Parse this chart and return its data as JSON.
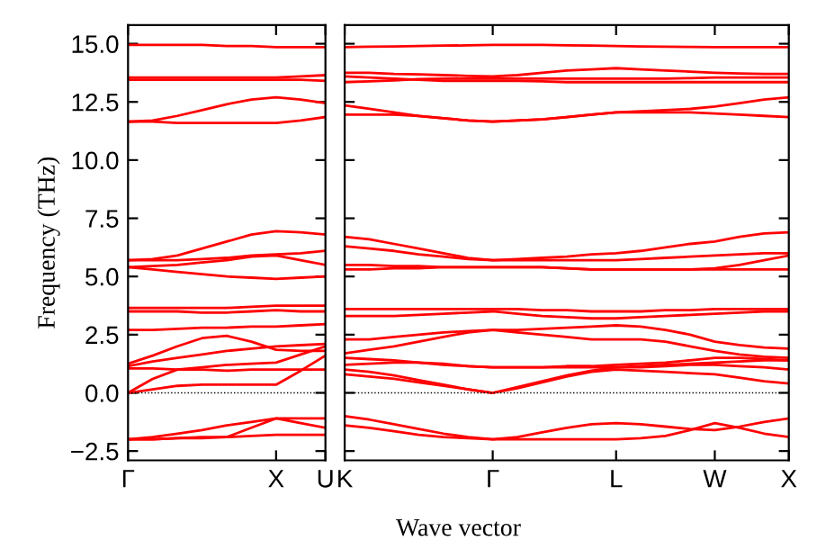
{
  "chart_data": [
    {
      "type": "line",
      "ylabel": "Frequency (THz)",
      "categories": [
        "Γ",
        null,
        null,
        null,
        null,
        null,
        "X",
        null,
        "U"
      ],
      "ylim": [
        -2.9,
        15.8
      ],
      "yticks": [
        {
          "value": -2.5,
          "label": "−2.5"
        },
        {
          "value": 0,
          "label": "0.0"
        },
        2.5,
        {
          "value": 5,
          "label": "5.0"
        },
        7.5,
        {
          "value": 10,
          "label": "10.0"
        },
        12.5,
        {
          "value": 15,
          "label": "15.0"
        }
      ],
      "ref_lines": [
        {
          "axis": "y",
          "value": 0,
          "color": "#000000",
          "line_style": "dotted"
        }
      ],
      "series": [
        {
          "color": "#ff0000",
          "values": [
            14.95,
            14.95,
            14.95,
            14.95,
            14.9,
            14.9,
            14.85,
            14.85,
            14.85
          ]
        },
        {
          "color": "#ff0000",
          "values": [
            13.55,
            13.55,
            13.55,
            13.55,
            13.55,
            13.55,
            13.55,
            13.6,
            13.65
          ]
        },
        {
          "color": "#ff0000",
          "values": [
            13.45,
            13.45,
            13.45,
            13.45,
            13.45,
            13.45,
            13.45,
            13.45,
            13.4
          ]
        },
        {
          "color": "#ff0000",
          "values": [
            11.65,
            11.7,
            11.9,
            12.15,
            12.4,
            12.6,
            12.7,
            12.6,
            12.45
          ]
        },
        {
          "color": "#ff0000",
          "values": [
            11.65,
            11.65,
            11.6,
            11.6,
            11.6,
            11.6,
            11.6,
            11.7,
            11.85
          ]
        },
        {
          "color": "#ff0000",
          "values": [
            5.7,
            5.75,
            5.9,
            6.2,
            6.5,
            6.8,
            6.95,
            6.9,
            6.8
          ]
        },
        {
          "color": "#ff0000",
          "values": [
            5.7,
            5.7,
            5.7,
            5.75,
            5.8,
            5.9,
            5.95,
            6.0,
            6.1
          ]
        },
        {
          "color": "#ff0000",
          "values": [
            5.4,
            5.45,
            5.5,
            5.6,
            5.7,
            5.85,
            5.9,
            5.7,
            5.5
          ]
        },
        {
          "color": "#ff0000",
          "values": [
            5.4,
            5.3,
            5.2,
            5.1,
            5.0,
            4.95,
            4.9,
            4.95,
            5.0
          ]
        },
        {
          "color": "#ff0000",
          "values": [
            3.65,
            3.65,
            3.65,
            3.65,
            3.65,
            3.7,
            3.75,
            3.75,
            3.75
          ]
        },
        {
          "color": "#ff0000",
          "values": [
            3.5,
            3.5,
            3.5,
            3.45,
            3.45,
            3.5,
            3.55,
            3.5,
            3.5
          ]
        },
        {
          "color": "#ff0000",
          "values": [
            2.7,
            2.7,
            2.75,
            2.8,
            2.8,
            2.85,
            2.85,
            2.9,
            2.95
          ]
        },
        {
          "color": "#ff0000",
          "values": [
            1.25,
            1.6,
            2.0,
            2.35,
            2.45,
            2.2,
            1.85,
            1.8,
            1.8
          ]
        },
        {
          "color": "#ff0000",
          "values": [
            1.15,
            1.35,
            1.5,
            1.65,
            1.8,
            1.9,
            2.0,
            2.05,
            2.1
          ]
        },
        {
          "color": "#ff0000",
          "values": [
            1.05,
            1.05,
            1.0,
            1.0,
            0.95,
            1.0,
            1.0,
            1.0,
            1.0
          ]
        },
        {
          "color": "#ff0000",
          "values": [
            0,
            0.15,
            0.3,
            0.35,
            0.35,
            0.35,
            0.35,
            0.95,
            1.6
          ]
        },
        {
          "color": "#ff0000",
          "values": [
            0,
            0.6,
            1.0,
            1.1,
            1.2,
            1.25,
            1.3,
            1.65,
            2.0
          ]
        },
        {
          "color": "#ff0000",
          "values": [
            -2.0,
            -1.9,
            -1.75,
            -1.6,
            -1.4,
            -1.25,
            -1.1,
            -1.1,
            -1.1
          ]
        },
        {
          "color": "#ff0000",
          "values": [
            -2.0,
            -2.0,
            -1.95,
            -1.95,
            -1.9,
            -1.5,
            -1.1,
            -1.3,
            -1.5
          ]
        },
        {
          "color": "#ff0000",
          "values": [
            -2.0,
            -2.0,
            -1.95,
            -1.9,
            -1.9,
            -1.85,
            -1.8,
            -1.8,
            -1.8
          ]
        }
      ]
    },
    {
      "type": "line",
      "xlabel": "Wave vector",
      "categories": [
        "K",
        null,
        null,
        null,
        null,
        null,
        "Γ",
        null,
        null,
        null,
        null,
        "L",
        null,
        null,
        null,
        "W",
        null,
        null,
        "X"
      ],
      "ylim": [
        -2.9,
        15.8
      ],
      "yticks": [
        {
          "value": -2.5,
          "label": null
        },
        {
          "value": 0,
          "label": null
        },
        {
          "value": 2.5,
          "label": null
        },
        {
          "value": 5,
          "label": null
        },
        {
          "value": 7.5,
          "label": null
        },
        {
          "value": 10,
          "label": null
        },
        {
          "value": 12.5,
          "label": null
        },
        {
          "value": 15,
          "label": null
        }
      ],
      "tick_labels": "x",
      "ref_lines": [
        {
          "axis": "y",
          "value": 0,
          "color": "#000000",
          "line_style": "dotted"
        }
      ],
      "series": [
        {
          "color": "#ff0000",
          "values": [
            14.85,
            14.87,
            14.88,
            14.9,
            14.92,
            14.93,
            14.95,
            14.95,
            14.95,
            14.93,
            14.92,
            14.9,
            14.88,
            14.87,
            14.86,
            14.85,
            14.85,
            14.85,
            14.85
          ]
        },
        {
          "color": "#ff0000",
          "values": [
            13.75,
            13.75,
            13.7,
            13.68,
            13.65,
            13.62,
            13.6,
            13.65,
            13.75,
            13.85,
            13.9,
            13.95,
            13.9,
            13.85,
            13.8,
            13.75,
            13.72,
            13.7,
            13.7
          ]
        },
        {
          "color": "#ff0000",
          "values": [
            13.6,
            13.55,
            13.5,
            13.45,
            13.4,
            13.4,
            13.4,
            13.4,
            13.38,
            13.35,
            13.35,
            13.35,
            13.35,
            13.35,
            13.35,
            13.35,
            13.35,
            13.35,
            13.35
          ]
        },
        {
          "color": "#ff0000",
          "values": [
            13.35,
            13.38,
            13.42,
            13.48,
            13.5,
            13.5,
            13.5,
            13.5,
            13.5,
            13.5,
            13.5,
            13.5,
            13.5,
            13.5,
            13.52,
            13.55,
            13.55,
            13.55,
            13.55
          ]
        },
        {
          "color": "#ff0000",
          "values": [
            12.35,
            12.2,
            12.05,
            11.9,
            11.8,
            11.7,
            11.65,
            11.7,
            11.75,
            11.85,
            11.95,
            12.05,
            12.1,
            12.15,
            12.2,
            12.3,
            12.45,
            12.6,
            12.7
          ]
        },
        {
          "color": "#ff0000",
          "values": [
            11.95,
            11.95,
            11.95,
            11.9,
            11.8,
            11.7,
            11.65,
            11.7,
            11.75,
            11.85,
            11.95,
            12.05,
            12.05,
            12.05,
            12.05,
            12.0,
            11.95,
            11.9,
            11.85
          ]
        },
        {
          "color": "#ff0000",
          "values": [
            6.7,
            6.6,
            6.4,
            6.2,
            6.0,
            5.8,
            5.7,
            5.75,
            5.8,
            5.85,
            5.95,
            6.0,
            6.1,
            6.25,
            6.4,
            6.5,
            6.7,
            6.85,
            6.9
          ]
        },
        {
          "color": "#ff0000",
          "values": [
            6.3,
            6.2,
            6.1,
            5.95,
            5.85,
            5.75,
            5.7,
            5.7,
            5.7,
            5.7,
            5.7,
            5.7,
            5.75,
            5.8,
            5.85,
            5.9,
            5.95,
            6.0,
            6.0
          ]
        },
        {
          "color": "#ff0000",
          "values": [
            5.5,
            5.5,
            5.45,
            5.45,
            5.4,
            5.4,
            5.4,
            5.4,
            5.4,
            5.35,
            5.3,
            5.3,
            5.3,
            5.3,
            5.3,
            5.3,
            5.3,
            5.3,
            5.3
          ]
        },
        {
          "color": "#ff0000",
          "values": [
            5.3,
            5.3,
            5.35,
            5.35,
            5.4,
            5.4,
            5.4,
            5.4,
            5.4,
            5.35,
            5.3,
            5.3,
            5.3,
            5.3,
            5.3,
            5.35,
            5.5,
            5.7,
            5.9
          ]
        },
        {
          "color": "#ff0000",
          "values": [
            3.6,
            3.6,
            3.6,
            3.6,
            3.6,
            3.6,
            3.6,
            3.6,
            3.55,
            3.55,
            3.5,
            3.5,
            3.5,
            3.55,
            3.55,
            3.6,
            3.6,
            3.6,
            3.6
          ]
        },
        {
          "color": "#ff0000",
          "values": [
            3.3,
            3.3,
            3.3,
            3.35,
            3.4,
            3.45,
            3.5,
            3.4,
            3.3,
            3.25,
            3.2,
            3.2,
            3.25,
            3.3,
            3.35,
            3.4,
            3.45,
            3.5,
            3.5
          ]
        },
        {
          "color": "#ff0000",
          "values": [
            2.3,
            2.3,
            2.4,
            2.5,
            2.6,
            2.65,
            2.7,
            2.7,
            2.75,
            2.8,
            2.85,
            2.9,
            2.85,
            2.7,
            2.5,
            2.2,
            2.05,
            1.95,
            1.9
          ]
        },
        {
          "color": "#ff0000",
          "values": [
            1.7,
            1.85,
            2.0,
            2.2,
            2.4,
            2.6,
            2.7,
            2.6,
            2.5,
            2.4,
            2.3,
            2.3,
            2.3,
            2.2,
            2.0,
            1.8,
            1.65,
            1.55,
            1.5
          ]
        },
        {
          "color": "#ff0000",
          "values": [
            1.5,
            1.45,
            1.4,
            1.3,
            1.2,
            1.15,
            1.1,
            1.1,
            1.1,
            1.1,
            1.1,
            1.1,
            1.15,
            1.2,
            1.25,
            1.3,
            1.35,
            1.4,
            1.4
          ]
        },
        {
          "color": "#ff0000",
          "values": [
            1.2,
            1.25,
            1.3,
            1.3,
            1.25,
            1.15,
            1.1,
            1.1,
            1.1,
            1.15,
            1.15,
            1.2,
            1.25,
            1.3,
            1.4,
            1.5,
            1.5,
            1.45,
            1.4
          ]
        },
        {
          "color": "#ff0000",
          "values": [
            1.0,
            0.9,
            0.75,
            0.55,
            0.35,
            0.15,
            0,
            0.25,
            0.5,
            0.75,
            0.95,
            1.1,
            1.1,
            1.15,
            1.2,
            1.2,
            1.15,
            1.1,
            1.0
          ]
        },
        {
          "color": "#ff0000",
          "values": [
            0.8,
            0.7,
            0.6,
            0.45,
            0.3,
            0.15,
            0,
            0.2,
            0.45,
            0.7,
            0.9,
            1.0,
            0.95,
            0.9,
            0.85,
            0.8,
            0.65,
            0.5,
            0.4
          ]
        },
        {
          "color": "#ff0000",
          "values": [
            -1.0,
            -1.15,
            -1.35,
            -1.55,
            -1.75,
            -1.9,
            -2.0,
            -1.9,
            -1.7,
            -1.5,
            -1.35,
            -1.3,
            -1.35,
            -1.45,
            -1.55,
            -1.6,
            -1.45,
            -1.25,
            -1.1
          ]
        },
        {
          "color": "#ff0000",
          "values": [
            -1.4,
            -1.5,
            -1.65,
            -1.8,
            -1.9,
            -1.95,
            -2.0,
            -2.0,
            -2.0,
            -2.0,
            -2.0,
            -2.0,
            -1.95,
            -1.85,
            -1.6,
            -1.3,
            -1.5,
            -1.75,
            -1.9
          ]
        }
      ]
    }
  ]
}
